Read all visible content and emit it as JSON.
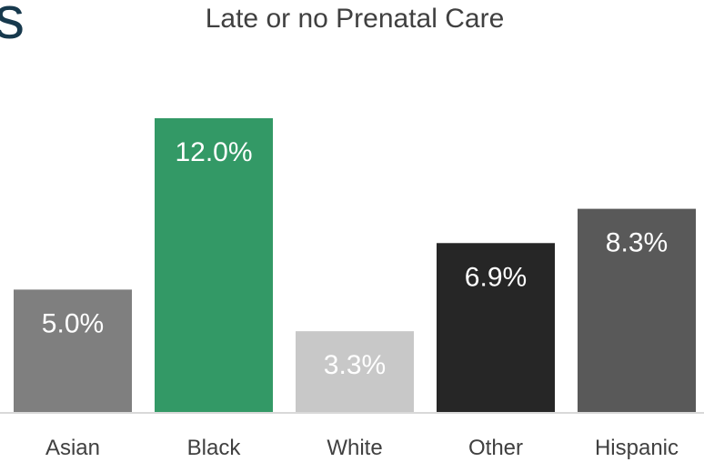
{
  "slide": {
    "title_fragment": "s"
  },
  "chart_data": {
    "type": "bar",
    "title": "Late or no Prenatal Care",
    "categories": [
      "Asian",
      "Black",
      "White",
      "Other",
      "Hispanic"
    ],
    "values": [
      5.0,
      12.0,
      3.3,
      6.9,
      8.3
    ],
    "data_labels": [
      "5.0%",
      "12.0%",
      "3.3%",
      "6.9%",
      "8.3%"
    ],
    "colors": [
      "#7f7f7f",
      "#339966",
      "#c8c8c8",
      "#262626",
      "#595959"
    ],
    "label_colors": [
      "#ffffff",
      "#ffffff",
      "#ffffff",
      "#ffffff",
      "#ffffff"
    ],
    "axis_color": "#d9d9d9",
    "xlabel": "",
    "ylabel": "",
    "ylim": [
      0,
      12.0
    ],
    "grid": false,
    "legend": "none"
  }
}
